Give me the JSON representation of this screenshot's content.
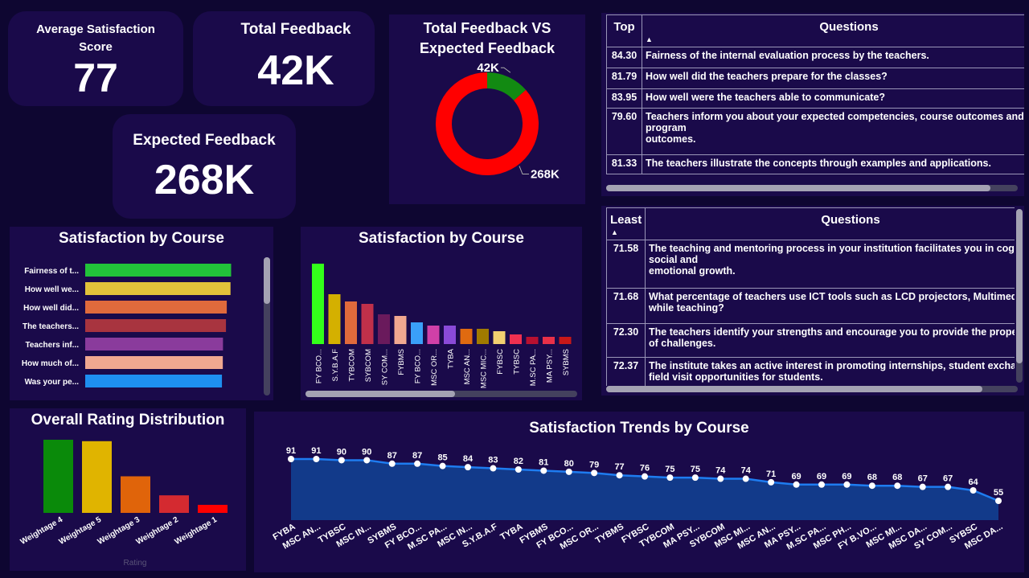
{
  "kpis": {
    "avg_satisfaction": {
      "label": "Average Satisfaction Score",
      "value": "77"
    },
    "total_feedback": {
      "label": "Total Feedback",
      "value": "42K"
    },
    "expected_feedback": {
      "label": "Expected Feedback",
      "value": "268K"
    }
  },
  "top_table": {
    "col1": "Top",
    "col2": "Questions",
    "rows": [
      {
        "score": "84.30",
        "question": "Fairness of the internal evaluation process by the teachers."
      },
      {
        "score": "81.79",
        "question": "How well did the teachers prepare for the classes?"
      },
      {
        "score": "83.95",
        "question": "How well were the teachers able to communicate?"
      },
      {
        "score": "79.60",
        "question": "Teachers inform you about your expected competencies, course outcomes and program\noutcomes."
      },
      {
        "score": "81.33",
        "question": "The teachers illustrate the concepts through examples and applications."
      }
    ]
  },
  "least_table": {
    "col1": "Least",
    "col2": "Questions",
    "rows": [
      {
        "score": "71.58",
        "question": "The teaching and mentoring process in your institution facilitates you in cognitive, social and\nemotional growth."
      },
      {
        "score": "71.68",
        "question": "What percentage of teachers use ICT tools such as LCD projectors, Multimedia, etc. while teaching?"
      },
      {
        "score": "72.30",
        "question": "The teachers identify your strengths and encourage you to provide the proper level of challenges."
      },
      {
        "score": "72.37",
        "question": "The institute takes an active interest in promoting internships, student exchange, field visit opportunities for students."
      }
    ]
  },
  "chart_data": [
    {
      "id": "donut",
      "type": "pie",
      "title": "Total Feedback VS Expected Feedback",
      "slices": [
        {
          "label": "42K",
          "value": 42,
          "color": "#128a12"
        },
        {
          "label": "268K",
          "value": 268,
          "color": "#ff0000"
        }
      ]
    },
    {
      "id": "hbar",
      "type": "bar",
      "orientation": "horizontal",
      "title": "Satisfaction by Course",
      "categories": [
        "Fairness of t...",
        "How well we...",
        "How well did...",
        "The teachers...",
        "Teachers inf...",
        "How much of...",
        "Was your pe..."
      ],
      "values": [
        84.3,
        83.95,
        81.79,
        81.33,
        79.6,
        79.5,
        79.0
      ],
      "colors": [
        "#22c33a",
        "#e2c23a",
        "#e06a3c",
        "#a8343f",
        "#8a3b9c",
        "#f0a890",
        "#1e8ff0"
      ],
      "xlim": [
        0,
        85
      ]
    },
    {
      "id": "vbar",
      "type": "bar",
      "title": "Satisfaction by Course",
      "categories": [
        "FY BCO...",
        "S.Y.B.A.F",
        "TYBCOM",
        "SYBCOM",
        "SY COM...",
        "FYBMS",
        "FY BCO...",
        "MSC OR...",
        "TYBA",
        "MSC AN...",
        "MSC MIC...",
        "FYBSC",
        "TYBSC",
        "M.SC PA...",
        "MA PSY...",
        "SYBMS"
      ],
      "values": [
        100,
        62,
        53,
        50,
        37,
        35,
        27,
        23,
        23,
        19,
        19,
        16,
        12,
        9,
        9,
        9
      ],
      "colors": [
        "#33ff1a",
        "#d4b000",
        "#e06a3c",
        "#c0304a",
        "#6a1a5c",
        "#f0a890",
        "#3aa0f8",
        "#d040a8",
        "#8a4ad8",
        "#e06a10",
        "#a07a00",
        "#f2d070",
        "#f03050",
        "#b81030",
        "#e83048",
        "#c81818"
      ],
      "ylim": [
        0,
        100
      ]
    },
    {
      "id": "rating",
      "type": "bar",
      "title": "Overall Rating Distribution",
      "xlabel": "Rating",
      "categories": [
        "Weightage 4",
        "Weightage 5",
        "Weightage 3",
        "Weightage 2",
        "Weightage 1"
      ],
      "values": [
        100,
        98,
        50,
        24,
        11
      ],
      "colors": [
        "#0a8a0a",
        "#e0b400",
        "#e0640a",
        "#d42a30",
        "#ff0000"
      ],
      "ylim": [
        0,
        100
      ]
    },
    {
      "id": "trend",
      "type": "area",
      "title": "Satisfaction Trends by Course",
      "categories": [
        "FYBA",
        "MSC AN...",
        "TYBSC",
        "MSC IN...",
        "SYBMS",
        "FY BCO...",
        "M.SC PA...",
        "MSC IN...",
        "S.Y.B.A.F",
        "TYBA",
        "FYBMS",
        "FY BCO...",
        "MSC OR...",
        "TYBMS",
        "FYBSC",
        "TYBCOM",
        "MA PSY...",
        "SYBCOM",
        "MSC MI...",
        "MSC AN...",
        "MA PSY...",
        "M.SC PA...",
        "MSC PH...",
        "FY B.VO...",
        "MSC MI...",
        "MSC DA...",
        "SY COM...",
        "SYBSC",
        "MSC DA..."
      ],
      "values": [
        91,
        91,
        90,
        90,
        87,
        87,
        85,
        84,
        83,
        82,
        81,
        80,
        79,
        77,
        76,
        75,
        75,
        74,
        74,
        71,
        69,
        69,
        69,
        68,
        68,
        67,
        67,
        64,
        55
      ],
      "color": "#1e7cf0",
      "fill": "#123a8a",
      "ylim": [
        0,
        100
      ]
    }
  ]
}
